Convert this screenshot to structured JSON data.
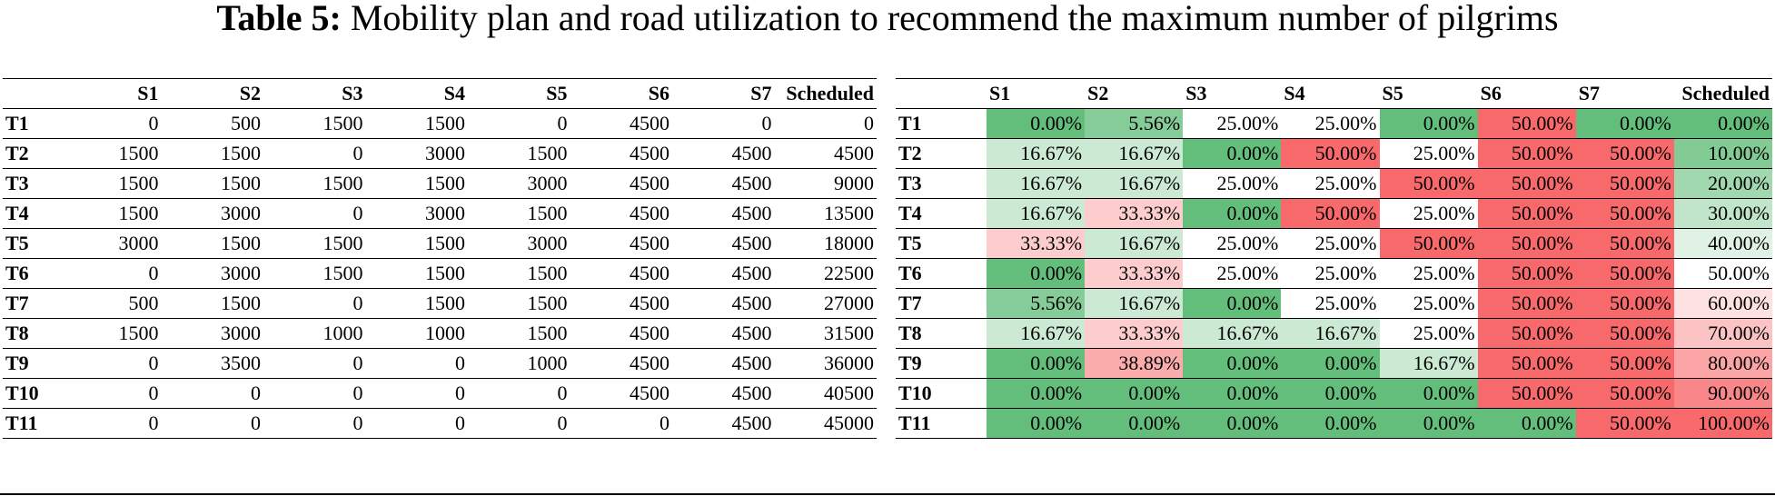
{
  "caption": {
    "label": "Table 5:",
    "text": "Mobility plan and road utilization to recommend the maximum number of pilgrims"
  },
  "columns": [
    "S1",
    "S2",
    "S3",
    "S4",
    "S5",
    "S6",
    "S7",
    "Scheduled"
  ],
  "plan": [
    {
      "time": "T1",
      "values": [
        "0",
        "500",
        "1500",
        "1500",
        "0",
        "4500",
        "0",
        "0"
      ]
    },
    {
      "time": "T2",
      "values": [
        "1500",
        "1500",
        "0",
        "3000",
        "1500",
        "4500",
        "4500",
        "4500"
      ]
    },
    {
      "time": "T3",
      "values": [
        "1500",
        "1500",
        "1500",
        "1500",
        "3000",
        "4500",
        "4500",
        "9000"
      ]
    },
    {
      "time": "T4",
      "values": [
        "1500",
        "3000",
        "0",
        "3000",
        "1500",
        "4500",
        "4500",
        "13500"
      ]
    },
    {
      "time": "T5",
      "values": [
        "3000",
        "1500",
        "1500",
        "1500",
        "3000",
        "4500",
        "4500",
        "18000"
      ]
    },
    {
      "time": "T6",
      "values": [
        "0",
        "3000",
        "1500",
        "1500",
        "1500",
        "4500",
        "4500",
        "22500"
      ]
    },
    {
      "time": "T7",
      "values": [
        "500",
        "1500",
        "0",
        "1500",
        "1500",
        "4500",
        "4500",
        "27000"
      ]
    },
    {
      "time": "T8",
      "values": [
        "1500",
        "3000",
        "1000",
        "1000",
        "1500",
        "4500",
        "4500",
        "31500"
      ]
    },
    {
      "time": "T9",
      "values": [
        "0",
        "3500",
        "0",
        "0",
        "1000",
        "4500",
        "4500",
        "36000"
      ]
    },
    {
      "time": "T10",
      "values": [
        "0",
        "0",
        "0",
        "0",
        "0",
        "4500",
        "4500",
        "40500"
      ]
    },
    {
      "time": "T11",
      "values": [
        "0",
        "0",
        "0",
        "0",
        "0",
        "0",
        "4500",
        "45000"
      ]
    }
  ],
  "utilization": [
    {
      "time": "T1",
      "values": [
        "0.00%",
        "5.56%",
        "25.00%",
        "25.00%",
        "0.00%",
        "50.00%",
        "0.00%",
        "0.00%"
      ]
    },
    {
      "time": "T2",
      "values": [
        "16.67%",
        "16.67%",
        "0.00%",
        "50.00%",
        "25.00%",
        "50.00%",
        "50.00%",
        "10.00%"
      ]
    },
    {
      "time": "T3",
      "values": [
        "16.67%",
        "16.67%",
        "25.00%",
        "25.00%",
        "50.00%",
        "50.00%",
        "50.00%",
        "20.00%"
      ]
    },
    {
      "time": "T4",
      "values": [
        "16.67%",
        "33.33%",
        "0.00%",
        "50.00%",
        "25.00%",
        "50.00%",
        "50.00%",
        "30.00%"
      ]
    },
    {
      "time": "T5",
      "values": [
        "33.33%",
        "16.67%",
        "25.00%",
        "25.00%",
        "50.00%",
        "50.00%",
        "50.00%",
        "40.00%"
      ]
    },
    {
      "time": "T6",
      "values": [
        "0.00%",
        "33.33%",
        "25.00%",
        "25.00%",
        "25.00%",
        "50.00%",
        "50.00%",
        "50.00%"
      ]
    },
    {
      "time": "T7",
      "values": [
        "5.56%",
        "16.67%",
        "0.00%",
        "25.00%",
        "25.00%",
        "50.00%",
        "50.00%",
        "60.00%"
      ]
    },
    {
      "time": "T8",
      "values": [
        "16.67%",
        "33.33%",
        "16.67%",
        "16.67%",
        "25.00%",
        "50.00%",
        "50.00%",
        "70.00%"
      ]
    },
    {
      "time": "T9",
      "values": [
        "0.00%",
        "38.89%",
        "0.00%",
        "0.00%",
        "16.67%",
        "50.00%",
        "50.00%",
        "80.00%"
      ]
    },
    {
      "time": "T10",
      "values": [
        "0.00%",
        "0.00%",
        "0.00%",
        "0.00%",
        "0.00%",
        "50.00%",
        "50.00%",
        "90.00%"
      ]
    },
    {
      "time": "T11",
      "values": [
        "0.00%",
        "0.00%",
        "0.00%",
        "0.00%",
        "0.00%",
        "0.00%",
        "50.00%",
        "100.00%"
      ]
    }
  ],
  "heat_colors": {
    "green_full": "#63be7b",
    "white": "#ffffff",
    "red_full": "#f8696b"
  }
}
